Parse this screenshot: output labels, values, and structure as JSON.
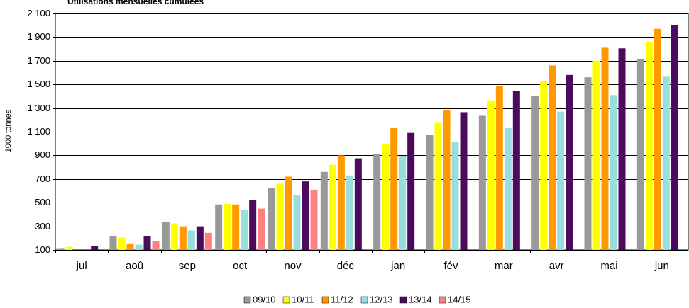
{
  "chart_data": {
    "type": "bar",
    "title": "Utilisations mensuelles cumulées",
    "xlabel": "",
    "ylabel": "1000 tonnes",
    "ylim": [
      100,
      2100
    ],
    "yticks": [
      100,
      300,
      500,
      700,
      900,
      1100,
      1300,
      1500,
      1700,
      1900,
      2100
    ],
    "ytick_labels": [
      "100",
      "300",
      "500",
      "700",
      "900",
      "1 100",
      "1 300",
      "1 500",
      "1 700",
      "1 900",
      "2 100"
    ],
    "grid": true,
    "legend_position": "bottom",
    "categories": [
      "jul",
      "aoû",
      "sep",
      "oct",
      "nov",
      "déc",
      "jan",
      "fév",
      "mar",
      "avr",
      "mai",
      "jun"
    ],
    "series": [
      {
        "name": "09/10",
        "color": "#999999",
        "values": [
          115,
          215,
          340,
          485,
          625,
          760,
          910,
          1075,
          1235,
          1405,
          1560,
          1715
        ]
      },
      {
        "name": "10/11",
        "color": "#ffff00",
        "values": [
          125,
          205,
          325,
          490,
          660,
          820,
          995,
          1175,
          1365,
          1525,
          1700,
          1860
        ]
      },
      {
        "name": "11/12",
        "color": "#ff9900",
        "values": [
          null,
          155,
          300,
          485,
          720,
          900,
          1130,
          1285,
          1485,
          1660,
          1810,
          1970
        ]
      },
      {
        "name": "12/13",
        "color": "#99dddd",
        "values": [
          null,
          145,
          265,
          440,
          565,
          730,
          895,
          1015,
          1130,
          1270,
          1410,
          1565
        ]
      },
      {
        "name": "13/14",
        "color": "#4b0a5c",
        "values": [
          130,
          215,
          300,
          520,
          680,
          875,
          1090,
          1265,
          1445,
          1580,
          1805,
          2000
        ]
      },
      {
        "name": "14/15",
        "color": "#ff8080",
        "values": [
          null,
          175,
          245,
          450,
          610,
          null,
          null,
          null,
          null,
          null,
          null,
          null
        ]
      }
    ]
  }
}
